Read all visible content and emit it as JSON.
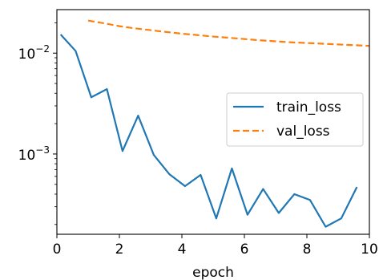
{
  "chart_data": {
    "type": "line",
    "title": "",
    "xlabel": "epoch",
    "ylabel": "",
    "yscale": "log",
    "xlim": [
      0,
      10
    ],
    "ylim": [
      0.00016,
      0.027
    ],
    "grid": false,
    "legend_placement": "center-right",
    "x_ticks": [
      0,
      2,
      4,
      6,
      8,
      10
    ],
    "x_tick_labels": [
      "0",
      "2",
      "4",
      "6",
      "8",
      "10"
    ],
    "y_ticks": [
      {
        "value": 0.001,
        "base": "10",
        "exponent": "−3"
      },
      {
        "value": 0.01,
        "base": "10",
        "exponent": "−2"
      }
    ],
    "series": [
      {
        "name": "train_loss",
        "color": "#1f77b4",
        "dash": "solid",
        "x": [
          0.12,
          0.6,
          1.1,
          1.6,
          2.1,
          2.6,
          3.1,
          3.6,
          4.1,
          4.6,
          5.1,
          5.6,
          6.1,
          6.6,
          7.1,
          7.6,
          8.1,
          8.6,
          9.1,
          9.6
        ],
        "y": [
          0.0153,
          0.0105,
          0.00365,
          0.0044,
          0.00107,
          0.0024,
          0.00098,
          0.00063,
          0.00048,
          0.00062,
          0.00023,
          0.00072,
          0.00025,
          0.00045,
          0.00026,
          0.0004,
          0.00035,
          0.00019,
          0.00023,
          0.00047
        ]
      },
      {
        "name": "val_loss",
        "color": "#ff7f0e",
        "dash": "dashed",
        "x": [
          1.0,
          1.5,
          2.0,
          2.5,
          3.0,
          3.5,
          4.0,
          4.5,
          5.0,
          5.5,
          6.0,
          6.5,
          7.0,
          7.5,
          8.0,
          8.5,
          9.0,
          9.5,
          10.0
        ],
        "y": [
          0.021,
          0.0198,
          0.0185,
          0.0176,
          0.0169,
          0.0162,
          0.0156,
          0.0151,
          0.0146,
          0.0142,
          0.0138,
          0.0134,
          0.0131,
          0.0128,
          0.0126,
          0.0124,
          0.0122,
          0.012,
          0.0118
        ]
      }
    ]
  }
}
